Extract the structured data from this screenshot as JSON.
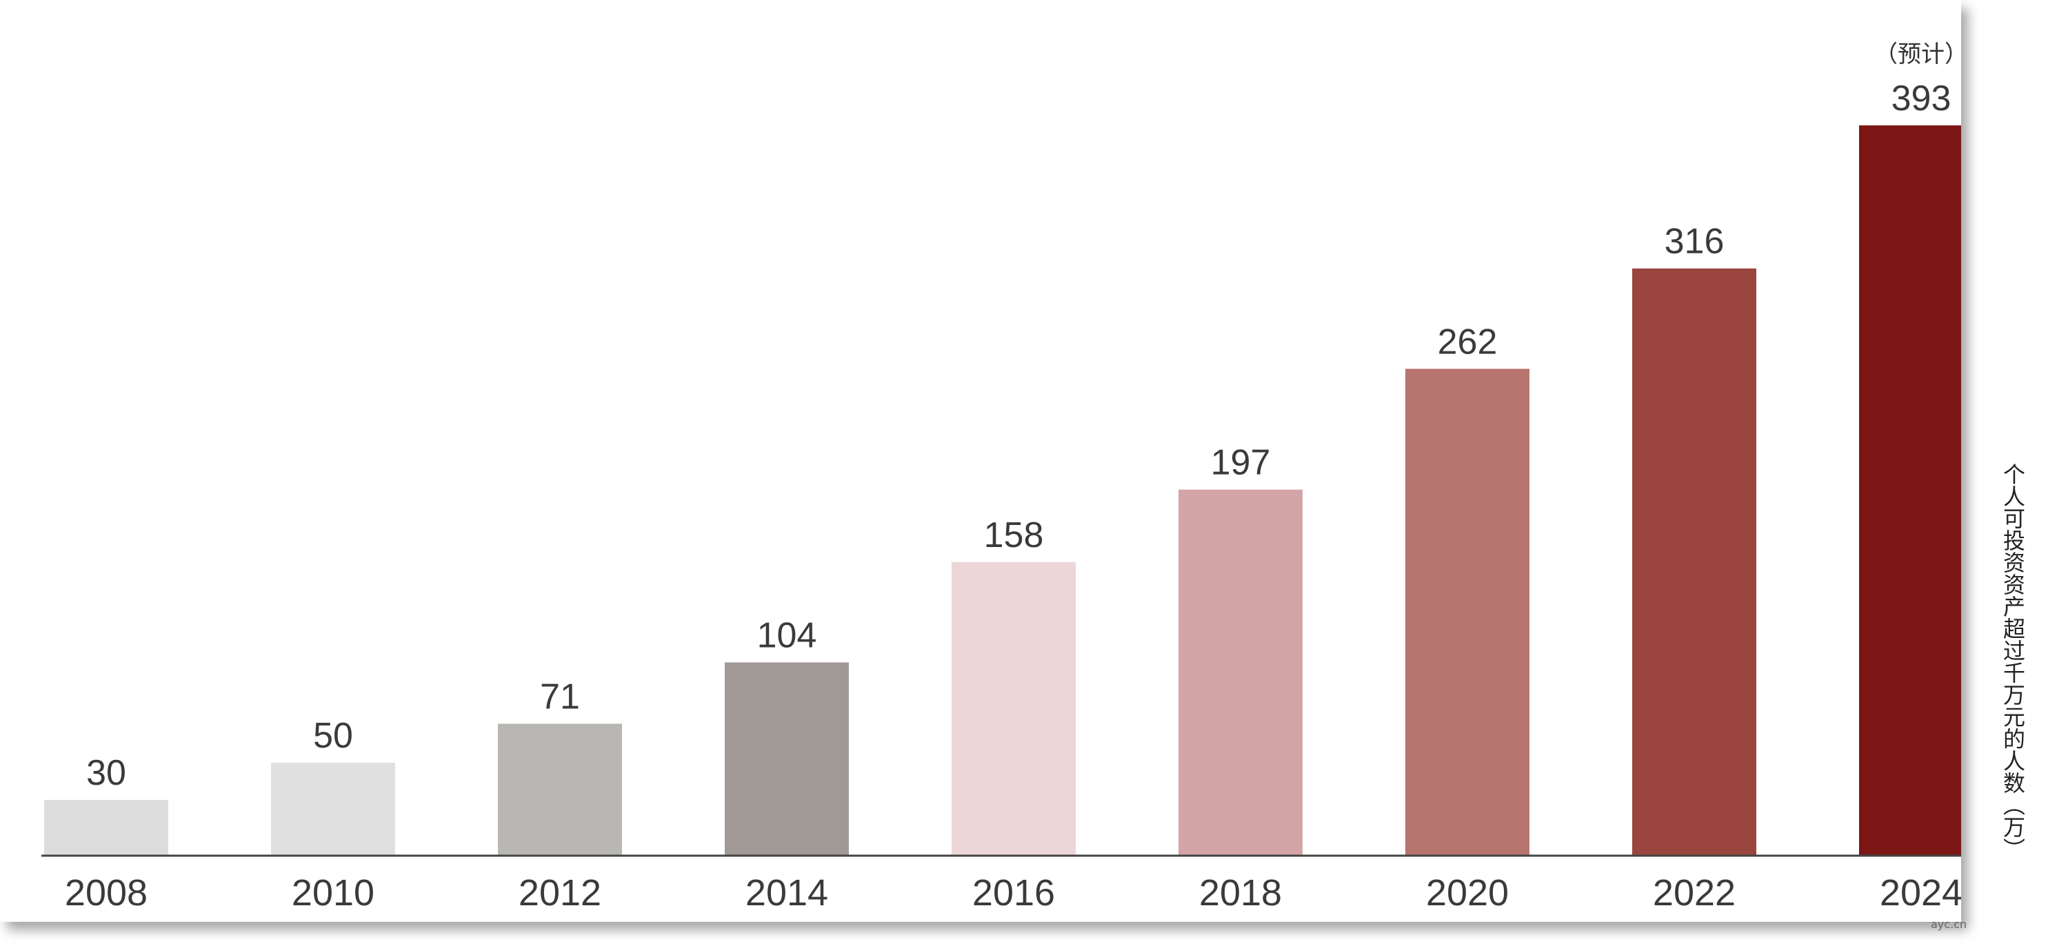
{
  "chart_data": {
    "type": "bar",
    "categories": [
      "2008",
      "2010",
      "2012",
      "2014",
      "2016",
      "2018",
      "2020",
      "2022",
      "2024"
    ],
    "values": [
      30,
      50,
      71,
      104,
      158,
      197,
      262,
      316,
      393
    ],
    "data_labels": [
      "30",
      "50",
      "71",
      "104",
      "158",
      "197",
      "262",
      "316",
      "393"
    ],
    "annotations": [
      "（预计）"
    ],
    "annotation_category": "2024",
    "ylabel": "个人可投资资产超过千万元的人数（万）",
    "xlabel": "",
    "title": "",
    "ylim": [
      0,
      393
    ],
    "grid": false,
    "legend": "none",
    "bar_colors": [
      "#dcdcdc",
      "#e0e0e0",
      "#b9b7b4",
      "#a19996",
      "#ecd6d7",
      "#d4a5a6",
      "#b8746f",
      "#9a453d",
      "#7c1715"
    ],
    "axis_color": "#444444"
  },
  "watermark": "ayc.cn"
}
